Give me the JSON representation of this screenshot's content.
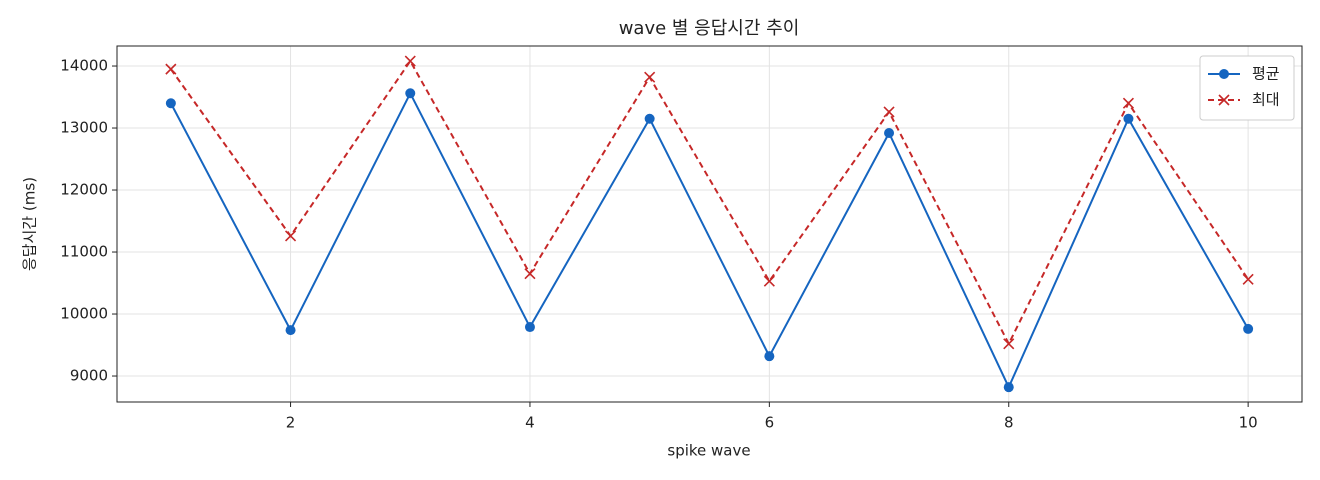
{
  "chart_data": {
    "type": "line",
    "title": "wave 별 응답시간 추이",
    "x_label": "spike wave",
    "y_label": "응답시간 (ms)",
    "x": [
      1,
      2,
      3,
      4,
      5,
      6,
      7,
      8,
      9,
      10
    ],
    "series": [
      {
        "name": "평균",
        "color": "#1565c0",
        "marker": "circle",
        "linestyle": "solid",
        "values": [
          13400,
          9740,
          13560,
          9790,
          13150,
          9320,
          12920,
          8820,
          13150,
          9760
        ]
      },
      {
        "name": "최대",
        "color": "#c62828",
        "marker": "x",
        "linestyle": "dashed",
        "values": [
          13950,
          11260,
          14080,
          10650,
          13820,
          10530,
          13260,
          9520,
          13400,
          10560
        ]
      }
    ],
    "xlim": [
      0.55,
      10.45
    ],
    "xticks": [
      2,
      4,
      6,
      8,
      10
    ],
    "ylim": [
      8581,
      14323
    ],
    "yticks": [
      9000,
      10000,
      11000,
      12000,
      13000,
      14000
    ],
    "grid": true,
    "legend": "upper right"
  }
}
